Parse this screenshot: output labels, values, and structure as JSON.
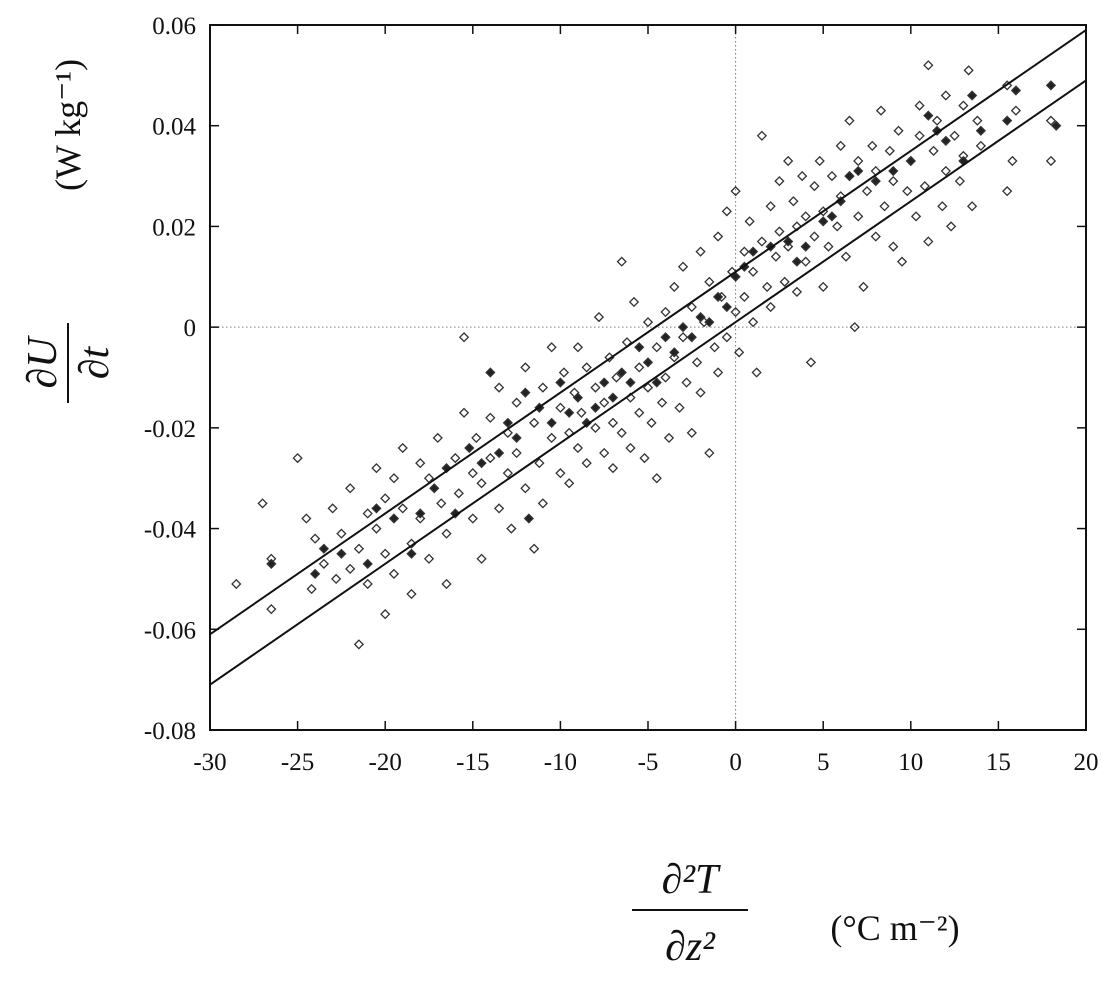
{
  "chart_data": {
    "type": "scatter",
    "title": "",
    "xlabel": {
      "numerator": "∂²T",
      "denominator": "∂z²",
      "unit": "(°C m⁻²)"
    },
    "ylabel": {
      "numerator": "∂U",
      "denominator": "∂t",
      "unit": "(W kg⁻¹)"
    },
    "xlim": [
      -30,
      20
    ],
    "ylim": [
      -0.08,
      0.06
    ],
    "xticks": [
      -30,
      -25,
      -20,
      -15,
      -10,
      -5,
      0,
      5,
      10,
      15,
      20
    ],
    "yticks": [
      -0.08,
      -0.06,
      -0.04,
      -0.02,
      0,
      0.02,
      0.04,
      0.06
    ],
    "xtick_labels": [
      "-30",
      "-25",
      "-20",
      "-15",
      "-10",
      "-5",
      "0",
      "5",
      "10",
      "15",
      "20"
    ],
    "ytick_labels": [
      "-0.08",
      "-0.06",
      "-0.04",
      "-0.02",
      "0",
      "0.02",
      "0.04",
      "0.06"
    ],
    "grid": false,
    "zero_reference_lines": true,
    "fit_lines": [
      {
        "slope": 0.0024,
        "intercept": 0.011
      },
      {
        "slope": 0.0024,
        "intercept": 0.001
      }
    ],
    "series": [
      {
        "marker": "open-diamond",
        "points": [
          [
            -28.5,
            -0.051
          ],
          [
            -27,
            -0.035
          ],
          [
            -26.5,
            -0.046
          ],
          [
            -26.5,
            -0.056
          ],
          [
            -25,
            -0.026
          ],
          [
            -24.5,
            -0.038
          ],
          [
            -24.2,
            -0.052
          ],
          [
            -24,
            -0.042
          ],
          [
            -23.5,
            -0.047
          ],
          [
            -23,
            -0.036
          ],
          [
            -22.8,
            -0.05
          ],
          [
            -22.5,
            -0.041
          ],
          [
            -22,
            -0.048
          ],
          [
            -22,
            -0.032
          ],
          [
            -21.5,
            -0.063
          ],
          [
            -21.5,
            -0.044
          ],
          [
            -21,
            -0.051
          ],
          [
            -21,
            -0.037
          ],
          [
            -20.5,
            -0.04
          ],
          [
            -20.5,
            -0.028
          ],
          [
            -20,
            -0.057
          ],
          [
            -20,
            -0.045
          ],
          [
            -20,
            -0.034
          ],
          [
            -19.5,
            -0.049
          ],
          [
            -19.5,
            -0.03
          ],
          [
            -19,
            -0.036
          ],
          [
            -19,
            -0.024
          ],
          [
            -18.5,
            -0.053
          ],
          [
            -18.5,
            -0.043
          ],
          [
            -18,
            -0.038
          ],
          [
            -18,
            -0.027
          ],
          [
            -17.5,
            -0.046
          ],
          [
            -17.5,
            -0.03
          ],
          [
            -17,
            -0.022
          ],
          [
            -16.8,
            -0.035
          ],
          [
            -16.5,
            -0.051
          ],
          [
            -16.5,
            -0.041
          ],
          [
            -16,
            -0.026
          ],
          [
            -15.8,
            -0.033
          ],
          [
            -15.5,
            -0.017
          ],
          [
            -15.5,
            -0.002
          ],
          [
            -15,
            -0.038
          ],
          [
            -15,
            -0.029
          ],
          [
            -14.8,
            -0.022
          ],
          [
            -14.5,
            -0.046
          ],
          [
            -14.5,
            -0.031
          ],
          [
            -14,
            -0.018
          ],
          [
            -14,
            -0.026
          ],
          [
            -13.5,
            -0.036
          ],
          [
            -13.5,
            -0.012
          ],
          [
            -13,
            -0.029
          ],
          [
            -13,
            -0.021
          ],
          [
            -12.8,
            -0.04
          ],
          [
            -12.5,
            -0.015
          ],
          [
            -12.5,
            -0.025
          ],
          [
            -12,
            -0.032
          ],
          [
            -12,
            -0.008
          ],
          [
            -11.5,
            -0.044
          ],
          [
            -11.5,
            -0.019
          ],
          [
            -11.2,
            -0.027
          ],
          [
            -11,
            -0.012
          ],
          [
            -11,
            -0.035
          ],
          [
            -10.5,
            -0.022
          ],
          [
            -10.5,
            -0.004
          ],
          [
            -10,
            -0.016
          ],
          [
            -10,
            -0.029
          ],
          [
            -9.8,
            -0.009
          ],
          [
            -9.5,
            -0.021
          ],
          [
            -9.5,
            -0.031
          ],
          [
            -9.2,
            -0.013
          ],
          [
            -9,
            -0.024
          ],
          [
            -9,
            -0.004
          ],
          [
            -8.8,
            -0.017
          ],
          [
            -8.5,
            -0.027
          ],
          [
            -8.5,
            -0.008
          ],
          [
            -8,
            -0.02
          ],
          [
            -8,
            -0.012
          ],
          [
            -7.8,
            0.002
          ],
          [
            -7.5,
            -0.025
          ],
          [
            -7.5,
            -0.015
          ],
          [
            -7.2,
            -0.006
          ],
          [
            -7,
            -0.019
          ],
          [
            -7,
            -0.028
          ],
          [
            -6.8,
            -0.01
          ],
          [
            -6.5,
            0.013
          ],
          [
            -6.5,
            -0.021
          ],
          [
            -6.2,
            -0.003
          ],
          [
            -6,
            -0.014
          ],
          [
            -6,
            -0.024
          ],
          [
            -5.8,
            0.005
          ],
          [
            -5.5,
            -0.017
          ],
          [
            -5.5,
            -0.008
          ],
          [
            -5.2,
            -0.026
          ],
          [
            -5,
            -0.012
          ],
          [
            -5,
            0.001
          ],
          [
            -4.8,
            -0.019
          ],
          [
            -4.5,
            -0.004
          ],
          [
            -4.5,
            -0.03
          ],
          [
            -4.2,
            -0.015
          ],
          [
            -4,
            0.003
          ],
          [
            -4,
            -0.01
          ],
          [
            -3.8,
            -0.022
          ],
          [
            -3.5,
            0.008
          ],
          [
            -3.5,
            -0.006
          ],
          [
            -3.2,
            -0.016
          ],
          [
            -3,
            0.012
          ],
          [
            -3,
            -0.002
          ],
          [
            -2.8,
            -0.011
          ],
          [
            -2.5,
            -0.021
          ],
          [
            -2.5,
            0.004
          ],
          [
            -2.2,
            -0.007
          ],
          [
            -2,
            0.015
          ],
          [
            -2,
            -0.013
          ],
          [
            -1.8,
            0.001
          ],
          [
            -1.5,
            -0.025
          ],
          [
            -1.5,
            0.009
          ],
          [
            -1.2,
            -0.004
          ],
          [
            -1,
            0.018
          ],
          [
            -1,
            -0.009
          ],
          [
            -0.8,
            0.006
          ],
          [
            -0.5,
            0.023
          ],
          [
            -0.5,
            -0.002
          ],
          [
            -0.2,
            0.011
          ],
          [
            0,
            0.027
          ],
          [
            0,
            0.003
          ],
          [
            0.2,
            -0.005
          ],
          [
            0.5,
            0.015
          ],
          [
            0.5,
            0.006
          ],
          [
            0.8,
            0.021
          ],
          [
            1,
            0.001
          ],
          [
            1,
            0.011
          ],
          [
            1.2,
            -0.009
          ],
          [
            1.5,
            0.038
          ],
          [
            1.5,
            0.017
          ],
          [
            1.8,
            0.008
          ],
          [
            2,
            0.024
          ],
          [
            2,
            0.004
          ],
          [
            2.3,
            0.014
          ],
          [
            2.5,
            0.029
          ],
          [
            2.5,
            0.019
          ],
          [
            2.8,
            0.009
          ],
          [
            3,
            0.033
          ],
          [
            3,
            0.016
          ],
          [
            3.3,
            0.025
          ],
          [
            3.5,
            0.007
          ],
          [
            3.5,
            0.02
          ],
          [
            3.8,
            0.03
          ],
          [
            4,
            0.013
          ],
          [
            4,
            0.022
          ],
          [
            4.3,
            -0.007
          ],
          [
            4.5,
            0.028
          ],
          [
            4.5,
            0.018
          ],
          [
            4.8,
            0.033
          ],
          [
            5,
            0.008
          ],
          [
            5,
            0.023
          ],
          [
            5.3,
            0.016
          ],
          [
            5.5,
            0.03
          ],
          [
            5.8,
            0.02
          ],
          [
            6,
            0.036
          ],
          [
            6,
            0.026
          ],
          [
            6.3,
            0.014
          ],
          [
            6.5,
            0.041
          ],
          [
            6.5,
            0.03
          ],
          [
            6.8,
            0
          ],
          [
            7,
            0.022
          ],
          [
            7,
            0.033
          ],
          [
            7.3,
            0.008
          ],
          [
            7.5,
            0.027
          ],
          [
            7.8,
            0.036
          ],
          [
            8,
            0.018
          ],
          [
            8,
            0.031
          ],
          [
            8.3,
            0.043
          ],
          [
            8.5,
            0.024
          ],
          [
            8.8,
            0.035
          ],
          [
            9,
            0.016
          ],
          [
            9,
            0.029
          ],
          [
            9.3,
            0.039
          ],
          [
            9.5,
            0.013
          ],
          [
            9.8,
            0.027
          ],
          [
            10,
            0.033
          ],
          [
            10.3,
            0.022
          ],
          [
            10.5,
            0.044
          ],
          [
            10.5,
            0.038
          ],
          [
            10.8,
            0.028
          ],
          [
            11,
            0.052
          ],
          [
            11,
            0.017
          ],
          [
            11.3,
            0.035
          ],
          [
            11.5,
            0.041
          ],
          [
            11.8,
            0.024
          ],
          [
            12,
            0.031
          ],
          [
            12,
            0.046
          ],
          [
            12.3,
            0.02
          ],
          [
            12.5,
            0.038
          ],
          [
            12.8,
            0.029
          ],
          [
            13,
            0.044
          ],
          [
            13,
            0.034
          ],
          [
            13.3,
            0.051
          ],
          [
            13.5,
            0.024
          ],
          [
            13.8,
            0.041
          ],
          [
            14,
            0.036
          ],
          [
            15.5,
            0.048
          ],
          [
            15.5,
            0.027
          ],
          [
            15.8,
            0.033
          ],
          [
            16,
            0.043
          ],
          [
            18,
            0.041
          ],
          [
            18,
            0.033
          ]
        ]
      },
      {
        "marker": "filled-diamond",
        "points": [
          [
            -26.5,
            -0.047
          ],
          [
            -24,
            -0.049
          ],
          [
            -23.5,
            -0.044
          ],
          [
            -22.5,
            -0.045
          ],
          [
            -21,
            -0.047
          ],
          [
            -20.5,
            -0.036
          ],
          [
            -19.5,
            -0.038
          ],
          [
            -18.5,
            -0.045
          ],
          [
            -18,
            -0.037
          ],
          [
            -17.2,
            -0.032
          ],
          [
            -16.5,
            -0.028
          ],
          [
            -16,
            -0.037
          ],
          [
            -15.2,
            -0.024
          ],
          [
            -14.5,
            -0.027
          ],
          [
            -14,
            -0.009
          ],
          [
            -13.5,
            -0.025
          ],
          [
            -13,
            -0.019
          ],
          [
            -12.5,
            -0.022
          ],
          [
            -12,
            -0.013
          ],
          [
            -11.8,
            -0.038
          ],
          [
            -11.2,
            -0.016
          ],
          [
            -10.5,
            -0.019
          ],
          [
            -10,
            -0.011
          ],
          [
            -9.5,
            -0.017
          ],
          [
            -9,
            -0.014
          ],
          [
            -8.5,
            -0.019
          ],
          [
            -8,
            -0.016
          ],
          [
            -7.5,
            -0.011
          ],
          [
            -7,
            -0.014
          ],
          [
            -6.5,
            -0.009
          ],
          [
            -6,
            -0.011
          ],
          [
            -5.5,
            -0.004
          ],
          [
            -5,
            -0.007
          ],
          [
            -4.5,
            -0.011
          ],
          [
            -4,
            -0.002
          ],
          [
            -3.5,
            -0.005
          ],
          [
            -3,
            0
          ],
          [
            -2.5,
            -0.002
          ],
          [
            -2,
            0.002
          ],
          [
            -1.5,
            0.001
          ],
          [
            -1,
            0.006
          ],
          [
            -0.5,
            0.004
          ],
          [
            0,
            0.01
          ],
          [
            0.5,
            0.012
          ],
          [
            1,
            0.015
          ],
          [
            2,
            0.016
          ],
          [
            3,
            0.017
          ],
          [
            3.5,
            0.013
          ],
          [
            4,
            0.016
          ],
          [
            5,
            0.021
          ],
          [
            5.5,
            0.022
          ],
          [
            6,
            0.025
          ],
          [
            6.5,
            0.03
          ],
          [
            7,
            0.031
          ],
          [
            8,
            0.029
          ],
          [
            9,
            0.031
          ],
          [
            10,
            0.033
          ],
          [
            11,
            0.042
          ],
          [
            11.5,
            0.039
          ],
          [
            12,
            0.037
          ],
          [
            13,
            0.033
          ],
          [
            13.5,
            0.046
          ],
          [
            14,
            0.039
          ],
          [
            15.5,
            0.041
          ],
          [
            16,
            0.047
          ],
          [
            18,
            0.048
          ],
          [
            18.3,
            0.04
          ]
        ]
      }
    ]
  }
}
